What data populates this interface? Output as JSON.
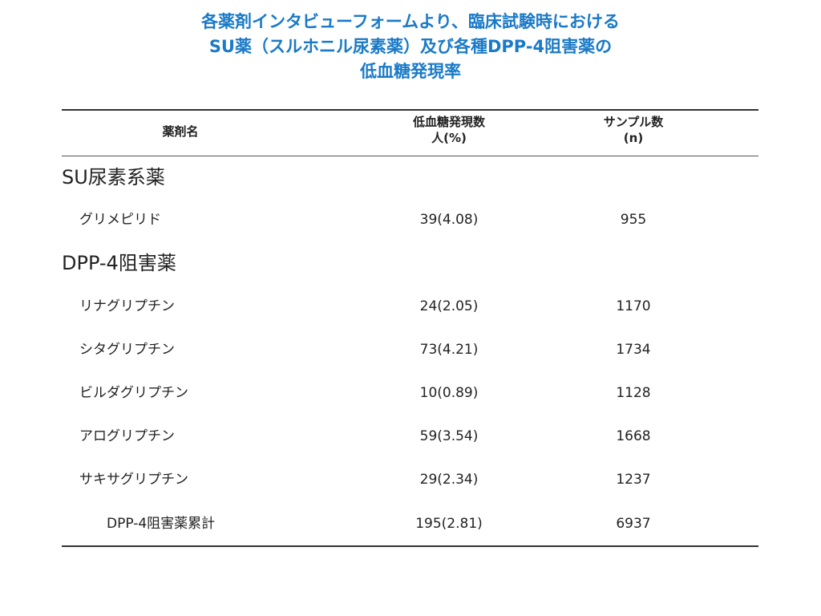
{
  "title": {
    "line1": "各薬剤インタビューフォームより、臨床試験時における",
    "line2": "SU薬（スルホニル尿素薬）及び各種DPP-4阻害薬の",
    "line3": "低血糖発現率"
  },
  "table": {
    "headers": {
      "name": "薬剤名",
      "count_line1": "低血糖発現数",
      "count_line2": "人(%)",
      "sample_line1": "サンプル数",
      "sample_line2": "(n)"
    },
    "groups": [
      {
        "label": "SU尿素系薬",
        "rows": [
          {
            "name": "グリメピリド",
            "count": "39(4.08)",
            "sample": "955"
          }
        ]
      },
      {
        "label": "DPP-4阻害薬",
        "rows": [
          {
            "name": "リナグリプチン",
            "count": "24(2.05)",
            "sample": "1170"
          },
          {
            "name": "シタグリプチン",
            "count": "73(4.21)",
            "sample": "1734"
          },
          {
            "name": "ビルダグリプチン",
            "count": "10(0.89)",
            "sample": "1128"
          },
          {
            "name": "アログリプチン",
            "count": "59(3.54)",
            "sample": "1668"
          },
          {
            "name": "サキサグリプチン",
            "count": "29(2.34)",
            "sample": "1237"
          }
        ]
      }
    ],
    "total": {
      "name": "DPP-4阻害薬累計",
      "count": "195(2.81)",
      "sample": "6937"
    }
  }
}
